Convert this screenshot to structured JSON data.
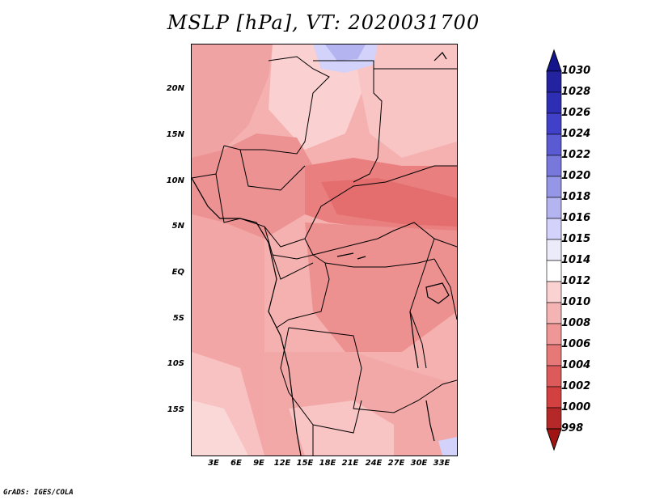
{
  "title": "MSLP [hPa], VT: 2020031700",
  "credit": "GrADS: IGES/COLA",
  "map": {
    "y_axis_labels": [
      "20N",
      "15N",
      "10N",
      "5N",
      "EQ",
      "5S",
      "10S",
      "15S"
    ],
    "x_axis_labels": [
      "3E",
      "6E",
      "9E",
      "12E",
      "15E",
      "18E",
      "21E",
      "24E",
      "27E",
      "30E",
      "33E"
    ]
  },
  "colorbar": {
    "levels": [
      "1030",
      "1028",
      "1026",
      "1024",
      "1022",
      "1020",
      "1018",
      "1016",
      "1015",
      "1014",
      "1012",
      "1010",
      "1008",
      "1006",
      "1004",
      "1002",
      "1000",
      "998"
    ],
    "colors": [
      "#14148c",
      "#2323a0",
      "#2e2eb4",
      "#4040c8",
      "#5a5ad2",
      "#7878dc",
      "#9696e6",
      "#b4b4f0",
      "#d2d2fa",
      "#ebebfa",
      "#ffffff",
      "#fad2d2",
      "#f5b4b4",
      "#f09696",
      "#e67878",
      "#dc5a5a",
      "#d24040",
      "#b42828",
      "#a01414"
    ]
  }
}
